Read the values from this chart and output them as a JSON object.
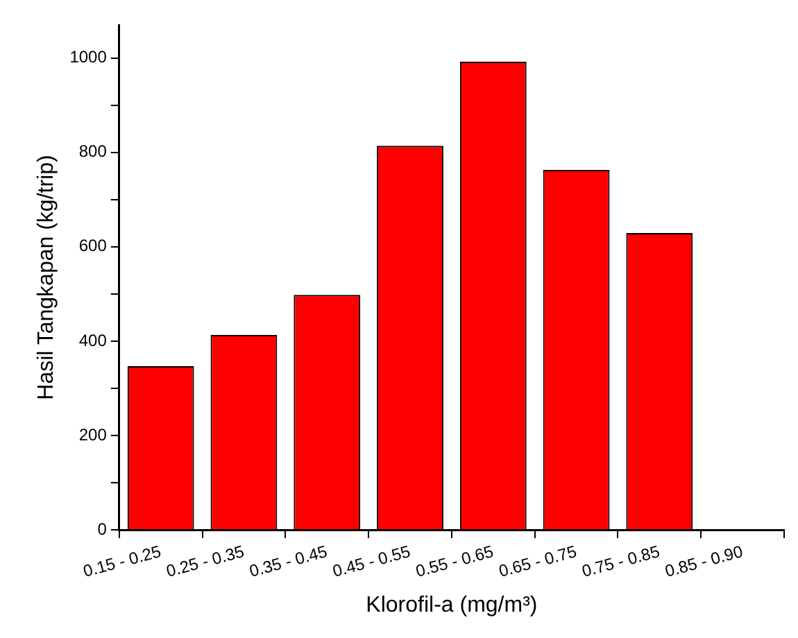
{
  "chart_data": {
    "type": "bar",
    "xlabel": "Klorofil-a (mg/m³)",
    "ylabel": "Hasil Tangkapan (kg/trip)",
    "categories": [
      "0.15 - 0.25",
      "0.25 - 0.35",
      "0.35 - 0.45",
      "0.45 - 0.55",
      "0.55 - 0.65",
      "0.65 - 0.75",
      "0.75 - 0.85",
      "0.85 - 0.90"
    ],
    "values": [
      347,
      413,
      498,
      814,
      992,
      763,
      629,
      null
    ],
    "color": "#ff0000",
    "ylim": [
      0,
      1070
    ],
    "yticks": [
      0,
      {
        "value": 100,
        "label": null
      },
      200,
      {
        "value": 300,
        "label": null
      },
      400,
      {
        "value": 500,
        "label": null
      },
      600,
      {
        "value": 700,
        "label": null
      },
      800,
      {
        "value": 900,
        "label": null
      },
      1000
    ],
    "grid": false,
    "legend": false
  }
}
